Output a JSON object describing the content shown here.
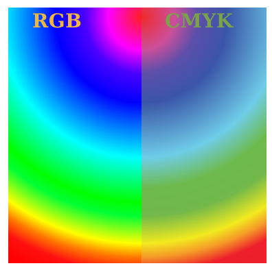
{
  "labels": {
    "rgb": "RGB",
    "cmyk": "CMYK"
  },
  "colors": {
    "rgb_label": "#f1b63c",
    "cmyk_label": "#7aa24a",
    "rgb_sequence": [
      "#ff1f1f",
      "#ff00ff",
      "#0000ff",
      "#00ffff",
      "#00ff00",
      "#ffff00",
      "#ff0000"
    ],
    "cmyk_sequence": [
      "#ef2a2a",
      "#cc4f9a",
      "#3a55a8",
      "#6fcde8",
      "#72b84a",
      "#f2ea1f",
      "#ec1f28"
    ]
  }
}
